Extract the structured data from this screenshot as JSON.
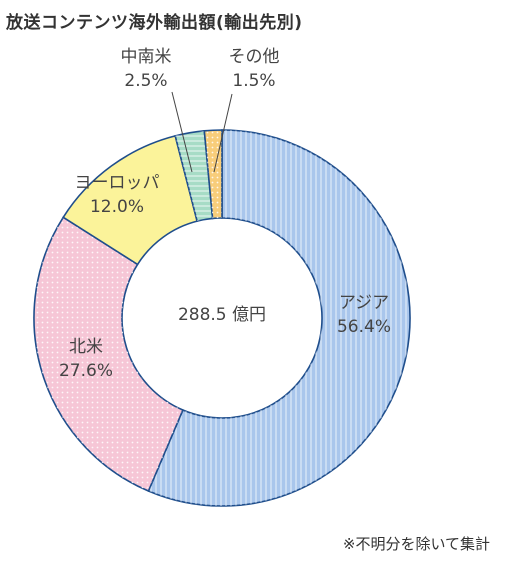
{
  "title": "放送コンテンツ海外輸出額(輸出先別)",
  "footnote": "※不明分を除いて集計",
  "chart_data": {
    "type": "pie",
    "variant": "donut",
    "center_label": "288.5 億円",
    "slices": [
      {
        "name": "アジア",
        "value": 56.4,
        "label": "56.4%",
        "color": "#a9c6ec",
        "pattern": "vertical-lines"
      },
      {
        "name": "北米",
        "value": 27.6,
        "label": "27.6%",
        "color": "#f6c6d6",
        "pattern": "dots"
      },
      {
        "name": "ヨーロッパ",
        "value": 12.0,
        "label": "12.0%",
        "color": "#fbf39a",
        "pattern": "none"
      },
      {
        "name": "中南米",
        "value": 2.5,
        "label": "2.5%",
        "color": "#a7dcc6",
        "pattern": "horizontal-lines"
      },
      {
        "name": "その他",
        "value": 1.5,
        "label": "1.5%",
        "color": "#f8cd7a",
        "pattern": "dots"
      }
    ]
  }
}
